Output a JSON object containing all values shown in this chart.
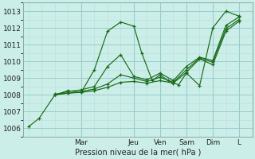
{
  "xlabel": "Pression niveau de la mer( hPa )",
  "bg_color": "#cceee8",
  "grid_major_color": "#99cccc",
  "grid_minor_color": "#bbdddd",
  "line_color": "#1a6b1a",
  "ylim": [
    1005.5,
    1013.5
  ],
  "xlim": [
    -0.2,
    8.5
  ],
  "yticks": [
    1006,
    1007,
    1008,
    1009,
    1010,
    1011,
    1012,
    1013
  ],
  "day_labels": [
    "Mar",
    "Jeu",
    "Ven",
    "Sam",
    "Dim",
    "L"
  ],
  "day_positions": [
    2.0,
    4.0,
    5.0,
    6.0,
    7.0,
    8.0
  ],
  "series": [
    {
      "x": [
        0.0,
        0.4,
        1.0,
        1.5,
        2.0,
        2.5,
        3.0,
        3.5,
        4.0,
        4.3,
        4.7,
        5.0,
        5.3,
        5.7,
        6.0,
        6.5,
        7.0,
        7.5,
        8.0
      ],
      "y": [
        1006.1,
        1006.6,
        1008.0,
        1008.25,
        1008.15,
        1009.5,
        1011.8,
        1012.35,
        1012.1,
        1010.5,
        1008.85,
        1009.2,
        1008.85,
        1008.6,
        1009.3,
        1008.55,
        1012.0,
        1013.0,
        1012.7
      ]
    },
    {
      "x": [
        1.0,
        1.5,
        2.0,
        2.5,
        3.0,
        3.5,
        4.0,
        4.5,
        5.0,
        5.5,
        6.0,
        6.5,
        7.0,
        7.5,
        8.0
      ],
      "y": [
        1008.0,
        1008.2,
        1008.3,
        1008.5,
        1009.7,
        1010.4,
        1009.1,
        1008.9,
        1009.3,
        1008.85,
        1009.7,
        1010.25,
        1010.05,
        1012.15,
        1012.65
      ]
    },
    {
      "x": [
        1.0,
        1.5,
        2.0,
        2.5,
        3.0,
        3.5,
        4.0,
        4.5,
        5.0,
        5.5,
        6.0,
        6.5,
        7.0,
        7.5,
        8.0
      ],
      "y": [
        1008.0,
        1008.1,
        1008.2,
        1008.35,
        1008.65,
        1009.2,
        1009.0,
        1008.8,
        1009.05,
        1008.75,
        1009.5,
        1010.2,
        1009.95,
        1011.95,
        1012.5
      ]
    },
    {
      "x": [
        1.0,
        1.5,
        2.0,
        2.5,
        3.0,
        3.5,
        4.0,
        4.5,
        5.0,
        5.5,
        6.0,
        6.5,
        7.0,
        7.5,
        8.0
      ],
      "y": [
        1008.05,
        1008.1,
        1008.15,
        1008.25,
        1008.45,
        1008.75,
        1008.8,
        1008.7,
        1008.85,
        1008.7,
        1009.35,
        1010.15,
        1009.8,
        1011.8,
        1012.4
      ]
    }
  ]
}
